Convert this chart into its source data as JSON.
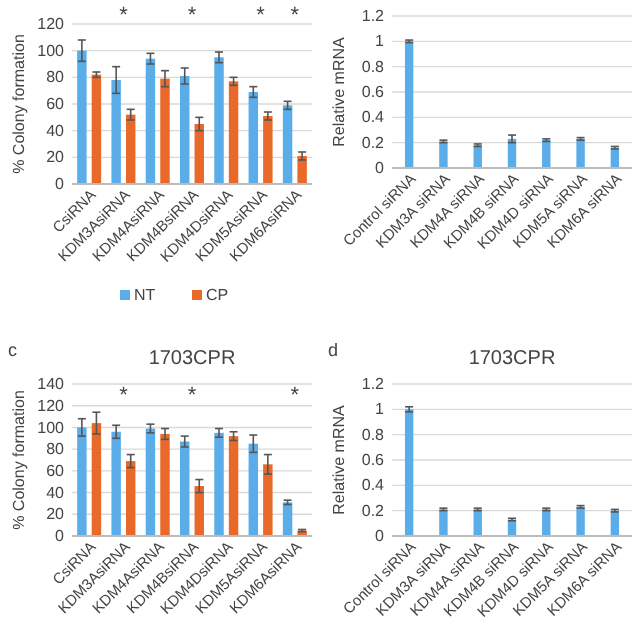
{
  "chart_data": [
    {
      "type": "bar",
      "ylabel": "% Colony formation",
      "categories": [
        "CsiRNA",
        "KDM3AsiRNA",
        "KDM4AsiRNA",
        "KDM4BsiRNA",
        "KDM4DsiRNA",
        "KDM5AsiRNA",
        "KDM6AsiRNA"
      ],
      "series": [
        {
          "name": "NT",
          "color": "#5aade8",
          "values": [
            100,
            78,
            94,
            81,
            95,
            69,
            59
          ],
          "errors": [
            8,
            10,
            4,
            6,
            4,
            4,
            3
          ]
        },
        {
          "name": "CP",
          "color": "#e8692a",
          "values": [
            82,
            52,
            79,
            45,
            77,
            51,
            21
          ],
          "errors": [
            2,
            4,
            6,
            5,
            3,
            3,
            3
          ]
        }
      ],
      "ylim": [
        0,
        120
      ],
      "yticks": [
        0,
        20,
        40,
        60,
        80,
        100,
        120
      ],
      "grid": "y",
      "legend": "bottom",
      "annotations": [
        "*",
        "*",
        "*",
        "*"
      ]
    },
    {
      "type": "bar",
      "ylabel": "Relative mRNA",
      "categories": [
        "Control siRNA",
        "KDM3A siRNA",
        "KDM4A siRNA",
        "KDM4B siRNA",
        "KDM4D siRNA",
        "KDM5A siRNA",
        "KDM6A siRNA"
      ],
      "series": [
        {
          "color": "#5aade8",
          "values": [
            1.0,
            0.21,
            0.18,
            0.23,
            0.22,
            0.23,
            0.16
          ],
          "errors": [
            0.01,
            0.01,
            0.01,
            0.03,
            0.01,
            0.01,
            0.01
          ]
        }
      ],
      "ylim": [
        0,
        1.2
      ],
      "yticks": [
        0,
        {
          "value": 0.2,
          "label": "0.2"
        },
        {
          "value": 0.4,
          "label": "0.4"
        },
        {
          "value": 0.6,
          "label": "0.6"
        },
        {
          "value": 0.8,
          "label": "0.8"
        },
        1,
        {
          "value": 1.2,
          "label": "1.2"
        }
      ],
      "grid": "y"
    },
    {
      "type": "bar",
      "title": "1703CPR",
      "ylabel": "% Colony formation",
      "categories": [
        "CsiRNA",
        "KDM3AsiRNA",
        "KDM4AsiRNA",
        "KDM4BsiRNA",
        "KDM4DsiRNA",
        "KDM5AsiRNA",
        "KDM6AsiRNA"
      ],
      "series": [
        {
          "color": "#5aade8",
          "values": [
            100,
            96,
            99,
            87,
            95,
            85,
            31
          ],
          "errors": [
            8,
            6,
            4,
            5,
            4,
            8,
            2
          ]
        },
        {
          "color": "#e8692a",
          "values": [
            104,
            69,
            94,
            46,
            92,
            66,
            5
          ],
          "errors": [
            10,
            6,
            5,
            6,
            4,
            9,
            1
          ]
        }
      ],
      "ylim": [
        0,
        140
      ],
      "yticks": [
        0,
        20,
        40,
        60,
        80,
        100,
        120,
        140
      ],
      "grid": "y",
      "annotations": [
        "c",
        "*",
        "*",
        "*"
      ]
    },
    {
      "type": "bar",
      "title": "1703CPR",
      "ylabel": "Relative mRNA",
      "categories": [
        "Control siRNA",
        "KDM3A siRNA",
        "KDM4A siRNA",
        "KDM4B siRNA",
        "KDM4D siRNA",
        "KDM5A siRNA",
        "KDM6A siRNA"
      ],
      "series": [
        {
          "color": "#5aade8",
          "values": [
            1.0,
            0.21,
            0.21,
            0.13,
            0.21,
            0.23,
            0.2
          ],
          "errors": [
            0.02,
            0.01,
            0.01,
            0.01,
            0.01,
            0.01,
            0.01
          ]
        }
      ],
      "ylim": [
        0,
        1.2
      ],
      "yticks": [
        0,
        {
          "value": 0.2,
          "label": "0.2"
        },
        {
          "value": 0.4,
          "label": "0.4"
        },
        {
          "value": 0.6,
          "label": "0.6"
        },
        {
          "value": 0.8,
          "label": "0.8"
        },
        1,
        {
          "value": 1.2,
          "label": "1.2"
        }
      ],
      "grid": "y",
      "annotations": [
        "d"
      ]
    }
  ]
}
